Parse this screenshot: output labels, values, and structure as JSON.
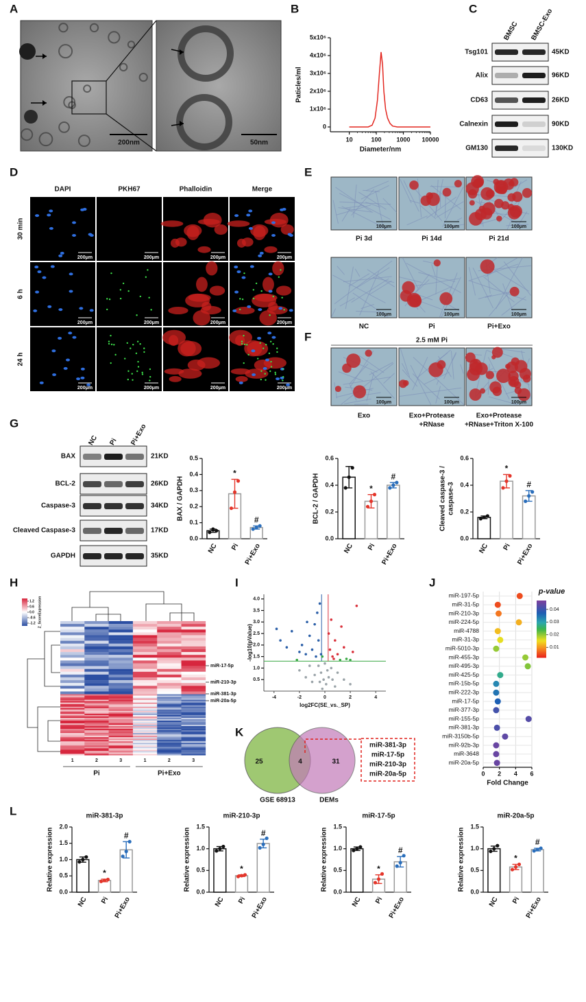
{
  "panels": {
    "A": {
      "letter": "A",
      "scale_bars": [
        "200nm",
        "50nm"
      ]
    },
    "B": {
      "letter": "B"
    },
    "C": {
      "letter": "C",
      "columns": [
        "BMSC",
        "BMSC-Exo"
      ],
      "rows": [
        {
          "protein": "Tsg101",
          "size": "45KD"
        },
        {
          "protein": "Alix",
          "size": "96KD"
        },
        {
          "protein": "CD63",
          "size": "26KD"
        },
        {
          "protein": "Calnexin",
          "size": "90KD"
        },
        {
          "protein": "GM130",
          "size": "130KD"
        }
      ]
    },
    "D": {
      "letter": "D",
      "columns": [
        "DAPI",
        "PKH67",
        "Phalloidin",
        "Merge"
      ],
      "rows": [
        "30 min",
        "6 h",
        "24 h"
      ],
      "scale_bar": "200μm"
    },
    "E": {
      "letter": "E",
      "scale_bar": "100μm",
      "captions": [
        [
          "Pi 3d",
          "Pi 14d",
          "Pi 21d"
        ],
        [
          "NC",
          "Pi",
          "Pi+Exo"
        ]
      ]
    },
    "F": {
      "letter": "F",
      "header": "2.5 mM Pi",
      "scale_bar": "100μm",
      "captions": [
        [
          "Exo"
        ],
        [
          "Exo+Protease",
          "+RNase"
        ],
        [
          "Exo+Protease",
          "+RNase+Triton X-100"
        ]
      ]
    },
    "G": {
      "letter": "G",
      "columns": [
        "NC",
        "Pi",
        "Pi+Exo"
      ],
      "rows": [
        {
          "protein": "BAX",
          "size": "21KD"
        },
        {
          "protein": "BCL-2",
          "size": "26KD"
        },
        {
          "protein": "Caspase-3",
          "size": "34KD"
        },
        {
          "protein": "Cleaved Caspase-3",
          "size": "17KD"
        },
        {
          "protein": "GAPDH",
          "size": "35KD"
        }
      ]
    },
    "H": {
      "letter": "H",
      "legend_title": "Z_ScoreExpression",
      "legend_lim": [
        -1.5,
        1.5
      ],
      "legend_ticks": [
        1.2,
        0.6,
        {
          "value": 0,
          "label": "0.0"
        },
        -0.6,
        -1.2
      ],
      "row_labels": [
        "miR-17-5p",
        "miR-210-3p",
        "miR-381-3p",
        "miR-20a-5p"
      ],
      "columns": [
        "1",
        "2",
        "3",
        "1",
        "2",
        "3"
      ],
      "groups": [
        "Pi",
        "Pi+Exo"
      ]
    },
    "I": {
      "letter": "I"
    },
    "J": {
      "letter": "J"
    },
    "K": {
      "letter": "K",
      "sets": [
        "GSE 68913",
        "DEMs"
      ],
      "counts": [
        25,
        4,
        31
      ],
      "shared": [
        "miR-381-3p",
        "miR-17-5p",
        "miR-210-3p",
        "miR-20a-5p"
      ]
    },
    "L": {
      "letter": "L"
    }
  },
  "chart_data": [
    {
      "type": "line",
      "xlabel": "Diameter/nm",
      "ylabel": "Paticles/ml",
      "xscale": "log",
      "color": "#e3261f",
      "x": [
        10,
        50,
        70,
        90,
        110,
        130,
        150,
        170,
        190,
        220,
        260,
        320,
        400,
        600,
        1000,
        10000
      ],
      "values": [
        0,
        0,
        100000,
        500000,
        1500000,
        3000000,
        4200000,
        3500000,
        2000000,
        1000000,
        500000,
        200000,
        50000,
        0,
        0,
        0
      ],
      "xlim": [
        2,
        10000
      ],
      "xticks": [
        10,
        100,
        1000,
        10000
      ],
      "ylim": [
        -270000,
        5000000
      ],
      "yticks": [
        0,
        {
          "value": 1000000,
          "label": "1x10⁶"
        },
        {
          "value": 2000000,
          "label": "2x10⁶"
        },
        {
          "value": 3000000,
          "label": "3x10⁶"
        },
        {
          "value": 4000000,
          "label": "4x10⁶"
        },
        {
          "value": 5000000,
          "label": "5x10⁶"
        }
      ]
    },
    {
      "type": "bar",
      "ylabel": "BAX / GAPDH",
      "categories": [
        "NC",
        "Pi",
        "Pi+Exo"
      ],
      "colors": [
        "#111111",
        "#e4352a",
        "#2a6ebb"
      ],
      "values": [
        0.05,
        0.28,
        0.07
      ],
      "errors": [
        0.01,
        0.09,
        0.01
      ],
      "points": [
        [
          0.04,
          0.06,
          0.05
        ],
        [
          0.19,
          0.29,
          0.36
        ],
        [
          0.06,
          0.07,
          0.08
        ]
      ],
      "annotations": [
        null,
        "*",
        "#"
      ],
      "ylim": [
        0,
        0.5
      ],
      "yticks": [
        {
          "value": 0,
          "label": "0.0"
        },
        0.1,
        0.2,
        0.3,
        0.4,
        0.5
      ]
    },
    {
      "type": "bar",
      "ylabel": "BCL-2 / GAPDH",
      "categories": [
        "NC",
        "Pi",
        "Pi+Exo"
      ],
      "colors": [
        "#111111",
        "#e4352a",
        "#2a6ebb"
      ],
      "values": [
        0.46,
        0.28,
        0.4
      ],
      "errors": [
        0.08,
        0.05,
        0.02
      ],
      "points": [
        [
          0.38,
          0.46,
          0.53
        ],
        [
          0.24,
          0.28,
          0.33
        ],
        [
          0.38,
          0.4,
          0.42
        ]
      ],
      "annotations": [
        null,
        "*",
        "#"
      ],
      "ylim": [
        0,
        0.6
      ],
      "yticks": [
        {
          "value": 0,
          "label": "0.0"
        },
        0.2,
        0.4,
        0.6
      ]
    },
    {
      "type": "bar",
      "ylabel": [
        "Cleaved caspase-3 /",
        "caspase-3"
      ],
      "categories": [
        "NC",
        "Pi",
        "Pi+Exo"
      ],
      "colors": [
        "#111111",
        "#e4352a",
        "#2a6ebb"
      ],
      "values": [
        0.16,
        0.43,
        0.32
      ],
      "errors": [
        0.01,
        0.05,
        0.04
      ],
      "points": [
        [
          0.15,
          0.16,
          0.17
        ],
        [
          0.38,
          0.43,
          0.47
        ],
        [
          0.28,
          0.32,
          0.35
        ]
      ],
      "annotations": [
        null,
        "*",
        "#"
      ],
      "ylim": [
        0,
        0.6
      ],
      "yticks": [
        {
          "value": 0,
          "label": "0.0"
        },
        0.2,
        0.4,
        0.6
      ]
    },
    {
      "type": "scatter",
      "xlabel": "log2FC(SE_vs._SP)",
      "ylabel": "-log10(pValue)",
      "xlim": [
        -4.8,
        4.8
      ],
      "ylim": [
        0,
        4.2
      ],
      "xticks": [
        -4,
        -2,
        0,
        2,
        4
      ],
      "yticks": [
        0.5,
        {
          "value": 1,
          "label": "1.0"
        },
        1.5,
        {
          "value": 2,
          "label": "2.0"
        },
        2.5,
        {
          "value": 3,
          "label": "3.0"
        },
        3.5,
        {
          "value": 4,
          "label": "4.0"
        }
      ],
      "thresholds": {
        "y": 1.3,
        "x": [
          -0.26,
          0.26
        ]
      },
      "series": [
        {
          "color": "#2b5fa8",
          "x": [
            -3.8,
            -3.5,
            -3.0,
            -2.6,
            -2.0,
            -1.8,
            -1.5,
            -1.2,
            -1.0,
            -0.8,
            -0.6,
            -0.5,
            -0.4,
            -0.3,
            -0.7,
            -1.4
          ],
          "y": [
            2.7,
            2.2,
            1.9,
            2.6,
            1.7,
            2.0,
            1.6,
            2.4,
            1.8,
            2.9,
            3.4,
            2.2,
            3.8,
            1.6,
            1.5,
            3.0
          ]
        },
        {
          "color": "#d9303a",
          "x": [
            0.3,
            0.4,
            0.5,
            0.6,
            0.8,
            1.0,
            1.3,
            1.5,
            2.2,
            2.5,
            0.7
          ],
          "y": [
            2.5,
            1.8,
            3.1,
            1.5,
            2.2,
            1.6,
            2.8,
            1.9,
            1.7,
            3.7,
            1.4
          ]
        },
        {
          "color": "#3aa845",
          "x": [
            -0.2,
            1.2,
            1.7,
            2.0,
            -2.2
          ],
          "y": [
            1.5,
            1.35,
            1.4,
            1.35,
            1.35
          ]
        },
        {
          "color": "#9aa3a8",
          "x": [
            -0.5,
            -0.3,
            -0.1,
            0.1,
            0.2,
            0.3,
            0.5,
            -0.8,
            -1.0,
            1.0,
            -1.5,
            0.8,
            -0.2,
            0.0,
            1.5,
            -2.0,
            2.0,
            -0.4,
            0.6,
            -1.2
          ],
          "y": [
            1.1,
            0.8,
            0.5,
            0.3,
            0.9,
            0.6,
            1.0,
            0.7,
            0.4,
            0.8,
            0.6,
            0.2,
            0.1,
            1.2,
            0.5,
            0.9,
            0.3,
            0.4,
            0.5,
            1.1
          ]
        }
      ]
    },
    {
      "type": "dot",
      "xlabel": "Fold Change",
      "color_title": "p-value",
      "grid": true,
      "categories": [
        "miR-197-5p",
        "miR-31-5p",
        "miR-210-3p",
        "miR-224-5p",
        "miR-4788",
        "miR-31-3p",
        "miR-5010-3p",
        "miR-455-3p",
        "miR-495-3p",
        "miR-425-5p",
        "miR-15b-5p",
        "miR-222-3p",
        "miR-17-5p",
        "miR-377-3p",
        "miR-155-5p",
        "miR-381-3p",
        "miR-3150b-5p",
        "miR-92b-3p",
        "miR-3648",
        "miR-20a-5p"
      ],
      "values": [
        4.5,
        1.8,
        1.9,
        4.4,
        1.8,
        2.1,
        1.6,
        5.2,
        5.5,
        2.1,
        1.6,
        1.6,
        1.8,
        1.6,
        5.6,
        1.7,
        2.7,
        1.6,
        1.6,
        1.7
      ],
      "p_values": [
        0.005,
        0.005,
        0.008,
        0.012,
        0.013,
        0.016,
        0.02,
        0.02,
        0.021,
        0.028,
        0.033,
        0.035,
        0.037,
        0.041,
        0.043,
        0.042,
        0.044,
        0.045,
        0.045,
        0.045
      ],
      "xlim": [
        0,
        6
      ],
      "xticks": [
        0,
        2,
        4,
        6
      ],
      "clim": [
        0.002,
        0.047
      ],
      "cticks": [
        0.01,
        0.02,
        0.03,
        0.04
      ]
    },
    {
      "type": "bar",
      "title": "miR-381-3p",
      "ylabel": "Relative expression",
      "categories": [
        "NC",
        "Pi",
        "Pi+Exo"
      ],
      "colors": [
        "#111111",
        "#e4352a",
        "#2a6ebb"
      ],
      "values": [
        1.0,
        0.36,
        1.3
      ],
      "errors": [
        0.08,
        0.04,
        0.25
      ],
      "points": [
        [
          0.93,
          1.0,
          1.08
        ],
        [
          0.33,
          0.36,
          0.39
        ],
        [
          1.1,
          1.25,
          1.55
        ]
      ],
      "annotations": [
        null,
        "*",
        "#"
      ],
      "ylim": [
        0,
        2
      ],
      "yticks": [
        {
          "value": 0,
          "label": "0.0"
        },
        0.5,
        {
          "value": 1,
          "label": "1.0"
        },
        1.5,
        {
          "value": 2,
          "label": "2.0"
        }
      ]
    },
    {
      "type": "bar",
      "title": "miR-210-3p",
      "ylabel": "Relative expression",
      "categories": [
        "NC",
        "Pi",
        "Pi+Exo"
      ],
      "colors": [
        "#111111",
        "#e4352a",
        "#2a6ebb"
      ],
      "values": [
        1.0,
        0.38,
        1.12
      ],
      "errors": [
        0.05,
        0.02,
        0.1
      ],
      "points": [
        [
          0.95,
          1.0,
          1.05
        ],
        [
          0.36,
          0.38,
          0.4
        ],
        [
          1.02,
          1.1,
          1.24
        ]
      ],
      "annotations": [
        null,
        "*",
        "#"
      ],
      "ylim": [
        0,
        1.5
      ],
      "yticks": [
        {
          "value": 0,
          "label": "0.0"
        },
        0.5,
        {
          "value": 1,
          "label": "1.0"
        },
        1.5
      ]
    },
    {
      "type": "bar",
      "title": "miR-17-5p",
      "ylabel": "Relative expression",
      "categories": [
        "NC",
        "Pi",
        "Pi+Exo"
      ],
      "colors": [
        "#111111",
        "#e4352a",
        "#2a6ebb"
      ],
      "values": [
        1.0,
        0.3,
        0.7
      ],
      "errors": [
        0.04,
        0.1,
        0.12
      ],
      "points": [
        [
          0.96,
          1.0,
          1.04
        ],
        [
          0.22,
          0.3,
          0.42
        ],
        [
          0.6,
          0.68,
          0.84
        ]
      ],
      "annotations": [
        null,
        "*",
        "#"
      ],
      "ylim": [
        0,
        1.5
      ],
      "yticks": [
        {
          "value": 0,
          "label": "0.0"
        },
        0.5,
        {
          "value": 1,
          "label": "1.0"
        },
        1.5
      ]
    },
    {
      "type": "bar",
      "title": "miR-20a-5p",
      "ylabel": "Relative expression",
      "categories": [
        "NC",
        "Pi",
        "Pi+Exo"
      ],
      "colors": [
        "#111111",
        "#e4352a",
        "#2a6ebb"
      ],
      "values": [
        1.0,
        0.58,
        0.98
      ],
      "errors": [
        0.06,
        0.06,
        0.03
      ],
      "points": [
        [
          0.94,
          1.0,
          1.07
        ],
        [
          0.52,
          0.58,
          0.64
        ],
        [
          0.95,
          0.98,
          1.01
        ]
      ],
      "annotations": [
        null,
        "*",
        "#"
      ],
      "ylim": [
        0,
        1.5
      ],
      "yticks": [
        {
          "value": 0,
          "label": "0.0"
        },
        0.5,
        {
          "value": 1,
          "label": "1.0"
        },
        1.5
      ]
    }
  ]
}
